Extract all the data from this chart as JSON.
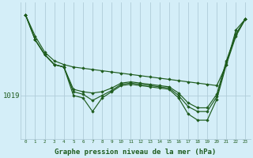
{
  "background_color": "#d4eef8",
  "grid_color": "#b0ccd8",
  "line_color": "#1e5c1e",
  "marker_color": "#1e5c1e",
  "xlabel": "Graphe pression niveau de la mer (hPa)",
  "xlabel_fontsize": 6.5,
  "ylabel_label": "1019",
  "ylabel_fontsize": 6.5,
  "xlim": [
    -0.5,
    23.5
  ],
  "ylim_min": 1015.5,
  "ylim_max": 1026.5,
  "y1019": 1019,
  "series": [
    [
      1025.5,
      1023.8,
      1022.5,
      1021.8,
      1021.5,
      1021.3,
      1021.2,
      1021.1,
      1021.0,
      1020.9,
      1020.8,
      1020.7,
      1020.6,
      1020.5,
      1020.4,
      1020.3,
      1020.2,
      1020.1,
      1020.0,
      1019.9,
      1019.8,
      1021.5,
      1024.3,
      1025.2
    ],
    [
      1025.5,
      1023.5,
      1022.3,
      1021.5,
      1021.3,
      1019.5,
      1019.3,
      1019.2,
      1019.3,
      1019.6,
      1020.0,
      1020.1,
      1020.0,
      1019.9,
      1019.8,
      1019.7,
      1019.2,
      1018.4,
      1018.0,
      1018.0,
      1019.1,
      1021.8,
      1024.0,
      1025.2
    ],
    [
      1025.5,
      1023.5,
      1022.3,
      1021.5,
      1021.3,
      1019.3,
      1019.1,
      1018.6,
      1019.0,
      1019.4,
      1019.9,
      1020.0,
      1019.9,
      1019.8,
      1019.7,
      1019.6,
      1019.0,
      1018.1,
      1017.7,
      1017.7,
      1018.9,
      1021.7,
      1023.9,
      1025.2
    ],
    [
      1025.5,
      1023.5,
      1022.3,
      1021.5,
      1021.3,
      1019.0,
      1018.8,
      1017.7,
      1018.8,
      1019.3,
      1019.8,
      1019.9,
      1019.8,
      1019.7,
      1019.6,
      1019.5,
      1018.8,
      1017.5,
      1017.0,
      1017.0,
      1018.7,
      1021.5,
      1023.8,
      1025.2
    ]
  ]
}
